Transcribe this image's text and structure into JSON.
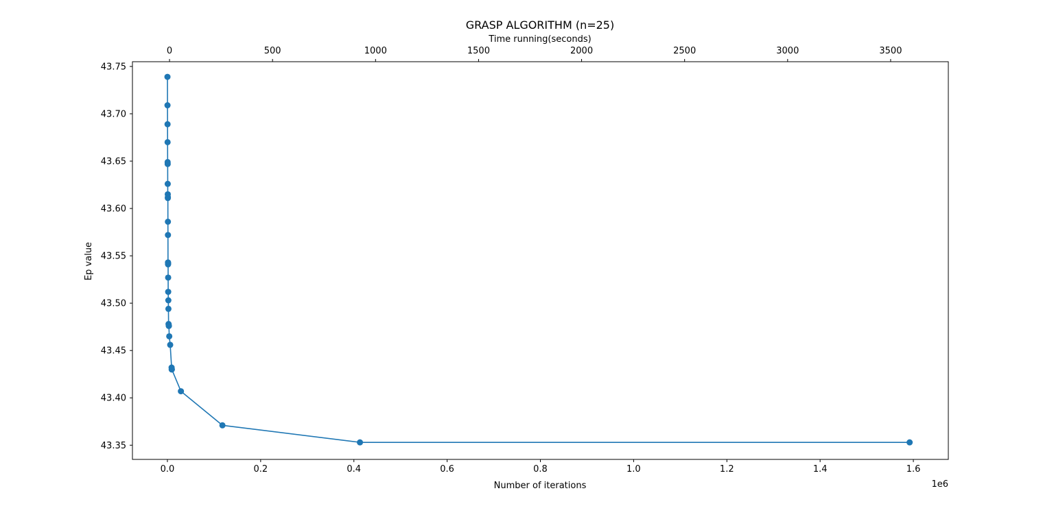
{
  "chart_data": {
    "type": "line",
    "title": "GRASP ALGORITHM (n=25)",
    "xlabel": "Number of iterations",
    "ylabel": "Ep value",
    "x2label": "Time running(seconds)",
    "x_offset_text": "1e6",
    "xlim": [
      -0.075,
      1.675
    ],
    "ylim": [
      43.335,
      43.755
    ],
    "x2lim": [
      -180,
      3780
    ],
    "xticks": [
      0.0,
      0.2,
      0.4,
      0.6,
      0.8,
      1.0,
      1.2,
      1.4,
      1.6
    ],
    "xtick_labels": [
      "0.0",
      "0.2",
      "0.4",
      "0.6",
      "0.8",
      "1.0",
      "1.2",
      "1.4",
      "1.6"
    ],
    "yticks": [
      43.35,
      43.4,
      43.45,
      43.5,
      43.55,
      43.6,
      43.65,
      43.7,
      43.75
    ],
    "ytick_labels": [
      "43.35",
      "43.40",
      "43.45",
      "43.50",
      "43.55",
      "43.60",
      "43.65",
      "43.70",
      "43.75"
    ],
    "x2ticks": [
      0,
      500,
      1000,
      1500,
      2000,
      2500,
      3000,
      3500
    ],
    "x2tick_labels": [
      "0",
      "500",
      "1000",
      "1500",
      "2000",
      "2500",
      "3000",
      "3500"
    ],
    "grid": false,
    "marker": "circle",
    "series": [
      {
        "color": "#1f77b4",
        "x": [
          0.0001,
          0.0002,
          0.0003,
          0.0004,
          0.0005,
          0.0006,
          0.0007,
          0.0008,
          0.0009,
          0.001,
          0.0011,
          0.0012,
          0.0013,
          0.0014,
          0.0015,
          0.0016,
          0.0017,
          0.002,
          0.0022,
          0.0025,
          0.0028,
          0.003,
          0.0032,
          0.004,
          0.006,
          0.009,
          0.0092,
          0.0095,
          0.029,
          0.118,
          0.413,
          1.592
        ],
        "y": [
          43.739,
          43.709,
          43.689,
          43.67,
          43.649,
          43.647,
          43.626,
          43.615,
          43.611,
          43.612,
          43.586,
          43.572,
          43.543,
          43.541,
          43.542,
          43.527,
          43.512,
          43.503,
          43.494,
          43.478,
          43.477,
          43.476,
          43.476,
          43.465,
          43.456,
          43.432,
          43.43,
          43.43,
          43.407,
          43.371,
          43.353,
          43.353
        ]
      }
    ]
  }
}
